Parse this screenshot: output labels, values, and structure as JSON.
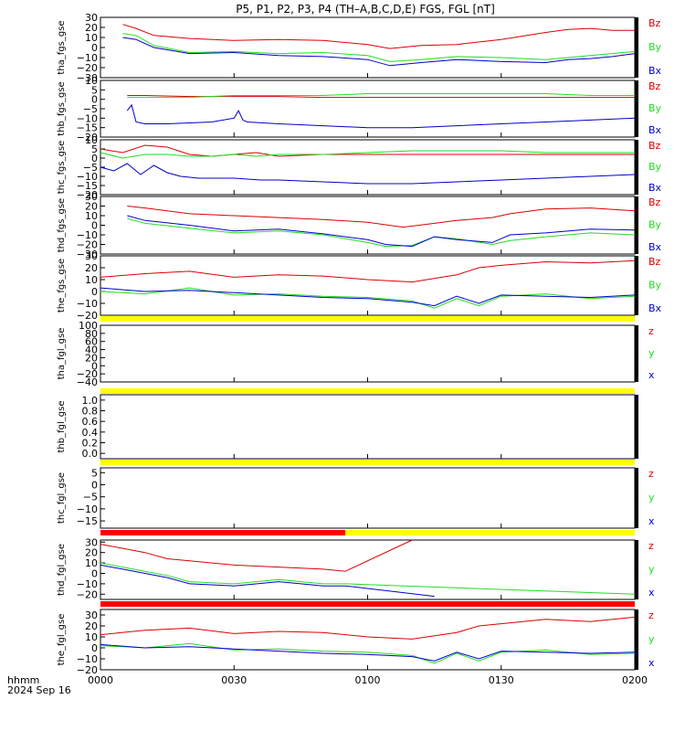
{
  "title": "P5, P1, P2, P3, P4 (TH–A,B,C,D,E) FGS, FGL [nT]",
  "x_axis": {
    "unit_label": "hhmm",
    "date_label": "2024 Sep 16",
    "ticks": [
      "0000",
      "0030",
      "0100",
      "0130",
      "0200"
    ],
    "range_minutes": [
      0,
      120
    ]
  },
  "colors": {
    "x": "#0000cc",
    "y": "#22dd22",
    "z": "#dd0000",
    "bar_yellow": "#ffff00",
    "bar_red": "#ff0000"
  },
  "chart_data": [
    {
      "type": "line",
      "ylabel": "tha_fgs_gse",
      "ylim": [
        -30,
        30
      ],
      "yticks": [
        "−30",
        "−20",
        "−10",
        "0",
        "10",
        "20",
        "30"
      ],
      "legend": [
        "Bz",
        "By",
        "Bx"
      ],
      "series": [
        {
          "name": "Bz",
          "x": [
            5,
            8,
            12,
            20,
            30,
            40,
            50,
            60,
            65,
            72,
            80,
            90,
            100,
            105,
            110,
            115,
            120
          ],
          "y": [
            23,
            19,
            12,
            9,
            7,
            8,
            7,
            3,
            -1,
            2,
            3,
            8,
            15,
            18,
            19,
            17,
            17
          ]
        },
        {
          "name": "By",
          "x": [
            5,
            8,
            12,
            20,
            30,
            40,
            50,
            60,
            65,
            72,
            80,
            90,
            100,
            105,
            110,
            115,
            120
          ],
          "y": [
            14,
            12,
            2,
            -5,
            -4,
            -6,
            -5,
            -8,
            -14,
            -12,
            -9,
            -10,
            -12,
            -10,
            -8,
            -6,
            -4
          ]
        },
        {
          "name": "Bx",
          "x": [
            5,
            8,
            12,
            20,
            30,
            40,
            50,
            60,
            65,
            72,
            80,
            90,
            100,
            105,
            110,
            115,
            120
          ],
          "y": [
            10,
            8,
            0,
            -6,
            -5,
            -8,
            -9,
            -12,
            -18,
            -15,
            -12,
            -14,
            -15,
            -12,
            -11,
            -9,
            -6
          ]
        }
      ]
    },
    {
      "type": "line",
      "ylabel": "thb_fgs_gse",
      "ylim": [
        -20,
        10
      ],
      "yticks": [
        "−20",
        "−15",
        "−10",
        "−5",
        "0",
        "5",
        "10"
      ],
      "legend": [
        "Bz",
        "By",
        "Bx"
      ],
      "series": [
        {
          "name": "Bz",
          "x": [
            6,
            10,
            20,
            30,
            40,
            50,
            60,
            70,
            80,
            90,
            100,
            110,
            120
          ],
          "y": [
            2,
            2,
            1.5,
            1.5,
            1.5,
            1,
            1,
            1,
            1,
            1,
            1,
            1,
            1
          ]
        },
        {
          "name": "By",
          "x": [
            6,
            10,
            20,
            30,
            40,
            50,
            60,
            70,
            80,
            90,
            100,
            110,
            120
          ],
          "y": [
            1,
            1,
            1,
            2,
            2,
            2,
            3,
            3,
            3,
            3,
            3,
            2,
            2
          ]
        },
        {
          "name": "Bx",
          "x": [
            6,
            7,
            8,
            10,
            15,
            25,
            30,
            31,
            32,
            33,
            40,
            50,
            60,
            70,
            80,
            90,
            100,
            110,
            120
          ],
          "y": [
            -6,
            -3,
            -12,
            -13,
            -13,
            -12,
            -10,
            -6,
            -11,
            -12,
            -13,
            -14,
            -15,
            -15,
            -14,
            -13,
            -12,
            -11,
            -10
          ]
        }
      ]
    },
    {
      "type": "line",
      "ylabel": "thc_fgs_gse",
      "ylim": [
        -20,
        10
      ],
      "yticks": [
        "−20",
        "−15",
        "−10",
        "−5",
        "0",
        "5",
        "10"
      ],
      "legend": [
        "Bz",
        "By",
        "Bx"
      ],
      "series": [
        {
          "name": "Bz",
          "x": [
            0,
            5,
            10,
            15,
            20,
            25,
            30,
            35,
            40,
            50,
            60,
            70,
            80,
            90,
            100,
            110,
            120
          ],
          "y": [
            5,
            3,
            7,
            6,
            2,
            1,
            2,
            3,
            1,
            2,
            2,
            2,
            2,
            2,
            2,
            2,
            2
          ]
        },
        {
          "name": "By",
          "x": [
            0,
            5,
            10,
            15,
            20,
            25,
            30,
            35,
            40,
            50,
            60,
            70,
            80,
            90,
            100,
            110,
            120
          ],
          "y": [
            3,
            0,
            2,
            2,
            1,
            1,
            2,
            1,
            2,
            2,
            3,
            4,
            4,
            4,
            3,
            3,
            3
          ]
        },
        {
          "name": "Bx",
          "x": [
            0,
            3,
            6,
            9,
            12,
            15,
            18,
            22,
            30,
            36,
            40,
            50,
            60,
            70,
            80,
            90,
            100,
            110,
            120
          ],
          "y": [
            -5,
            -7,
            -3,
            -9,
            -4,
            -8,
            -10,
            -11,
            -11,
            -12,
            -12,
            -13,
            -14,
            -14,
            -13,
            -12,
            -11,
            -10,
            -9
          ]
        }
      ]
    },
    {
      "type": "line",
      "ylabel": "thd_fgs_gse",
      "ylim": [
        -30,
        30
      ],
      "yticks": [
        "−30",
        "−20",
        "−10",
        "0",
        "10",
        "20",
        "30"
      ],
      "legend": [
        "Bz",
        "By",
        "Bx"
      ],
      "series": [
        {
          "name": "Bz",
          "x": [
            6,
            10,
            20,
            30,
            40,
            50,
            60,
            68,
            75,
            80,
            88,
            92,
            100,
            110,
            120
          ],
          "y": [
            20,
            18,
            12,
            10,
            8,
            6,
            3,
            -2,
            2,
            5,
            8,
            12,
            17,
            18,
            15
          ]
        },
        {
          "name": "By",
          "x": [
            6,
            10,
            20,
            30,
            40,
            50,
            60,
            64,
            70,
            75,
            80,
            88,
            92,
            100,
            110,
            120
          ],
          "y": [
            7,
            2,
            -3,
            -8,
            -6,
            -10,
            -18,
            -22,
            -21,
            -12,
            -14,
            -20,
            -16,
            -12,
            -8,
            -10
          ]
        },
        {
          "name": "Bx",
          "x": [
            6,
            10,
            20,
            30,
            40,
            50,
            60,
            64,
            70,
            75,
            80,
            88,
            92,
            100,
            110,
            120
          ],
          "y": [
            10,
            5,
            0,
            -6,
            -4,
            -9,
            -15,
            -20,
            -22,
            -12,
            -15,
            -18,
            -10,
            -8,
            -4,
            -5
          ]
        }
      ]
    },
    {
      "type": "line",
      "ylabel": "the_fgs_gse",
      "ylim": [
        -20,
        30
      ],
      "yticks": [
        "−20",
        "−10",
        "0",
        "10",
        "20",
        "30"
      ],
      "legend": [
        "Bz",
        "By",
        "Bx"
      ],
      "series": [
        {
          "name": "Bz",
          "x": [
            0,
            10,
            20,
            30,
            40,
            50,
            60,
            70,
            80,
            85,
            90,
            100,
            110,
            120
          ],
          "y": [
            12,
            15,
            17,
            12,
            14,
            13,
            10,
            8,
            14,
            20,
            22,
            25,
            24,
            26
          ]
        },
        {
          "name": "By",
          "x": [
            0,
            10,
            20,
            30,
            40,
            50,
            60,
            70,
            75,
            80,
            85,
            90,
            100,
            110,
            120
          ],
          "y": [
            0,
            -2,
            3,
            -3,
            -2,
            -4,
            -5,
            -8,
            -14,
            -6,
            -12,
            -4,
            -2,
            -6,
            -4
          ]
        },
        {
          "name": "Bx",
          "x": [
            0,
            10,
            20,
            30,
            40,
            50,
            60,
            70,
            75,
            80,
            85,
            90,
            100,
            110,
            120
          ],
          "y": [
            3,
            0,
            1,
            -1,
            -3,
            -5,
            -6,
            -9,
            -12,
            -4,
            -10,
            -3,
            -4,
            -5,
            -3
          ]
        }
      ]
    },
    {
      "type": "line",
      "ylabel": "tha_fgl_gse",
      "ylim": [
        -40,
        100
      ],
      "yticks": [
        "−40",
        "−20",
        "0",
        "20",
        "40",
        "60",
        "80",
        "100"
      ],
      "legend": [
        "z",
        "y",
        "x"
      ],
      "series": [],
      "top_bar": "yellow"
    },
    {
      "type": "line",
      "ylabel": "thb_fgl_gse",
      "ylim": [
        -0.1,
        1.1
      ],
      "yticks": [
        "0.0",
        "0.2",
        "0.4",
        "0.6",
        "0.8",
        "1.0"
      ],
      "legend": [],
      "series": [],
      "top_bar": "yellow"
    },
    {
      "type": "line",
      "ylabel": "thc_fgl_gse",
      "ylim": [
        -18,
        7
      ],
      "yticks": [
        "−15",
        "−10",
        "−5",
        "0",
        "5"
      ],
      "legend": [
        "z",
        "y",
        "x"
      ],
      "series": [],
      "top_bar": "yellow"
    },
    {
      "type": "line",
      "ylabel": "thd_fgl_gse",
      "ylim": [
        -25,
        32
      ],
      "yticks": [
        "−20",
        "−10",
        "0",
        "10",
        "20",
        "30"
      ],
      "legend": [
        "z",
        "y",
        "x"
      ],
      "top_bar": "red-yellow",
      "series": [
        {
          "name": "z",
          "x": [
            0,
            5,
            10,
            15,
            20,
            30,
            40,
            50,
            55,
            70
          ],
          "y": [
            28,
            24,
            20,
            14,
            12,
            8,
            6,
            4,
            2,
            32
          ]
        },
        {
          "name": "y",
          "x": [
            0,
            5,
            10,
            15,
            20,
            30,
            40,
            45,
            50,
            55,
            120
          ],
          "y": [
            10,
            6,
            2,
            -2,
            -8,
            -10,
            -6,
            -8,
            -10,
            -10,
            -20
          ]
        },
        {
          "name": "x",
          "x": [
            0,
            5,
            10,
            15,
            20,
            30,
            40,
            45,
            50,
            55,
            75
          ],
          "y": [
            8,
            4,
            0,
            -4,
            -10,
            -12,
            -8,
            -10,
            -12,
            -12,
            -22
          ]
        }
      ]
    },
    {
      "type": "line",
      "ylabel": "the_fgl_gse",
      "ylim": [
        -20,
        35
      ],
      "yticks": [
        "−20",
        "−10",
        "0",
        "10",
        "20",
        "30"
      ],
      "legend": [
        "z",
        "y",
        "x"
      ],
      "top_bar": "red",
      "series": [
        {
          "name": "z",
          "x": [
            0,
            10,
            20,
            30,
            40,
            50,
            60,
            70,
            80,
            85,
            90,
            100,
            110,
            120
          ],
          "y": [
            12,
            16,
            18,
            13,
            15,
            14,
            10,
            8,
            14,
            20,
            22,
            26,
            24,
            28
          ]
        },
        {
          "name": "y",
          "x": [
            0,
            10,
            20,
            30,
            40,
            50,
            60,
            70,
            75,
            80,
            85,
            90,
            100,
            110,
            120
          ],
          "y": [
            2,
            0,
            4,
            -2,
            -1,
            -3,
            -4,
            -7,
            -14,
            -5,
            -12,
            -4,
            -2,
            -6,
            -5
          ]
        },
        {
          "name": "x",
          "x": [
            0,
            10,
            20,
            30,
            40,
            50,
            60,
            70,
            75,
            80,
            85,
            90,
            100,
            110,
            120
          ],
          "y": [
            3,
            0,
            1,
            -1,
            -3,
            -5,
            -6,
            -8,
            -12,
            -4,
            -10,
            -3,
            -4,
            -5,
            -4
          ]
        }
      ]
    }
  ]
}
